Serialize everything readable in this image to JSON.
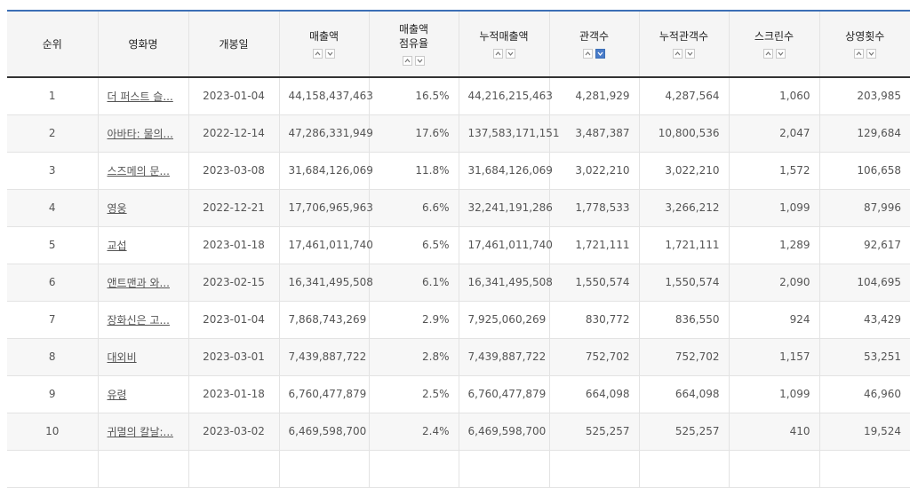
{
  "table": {
    "headers": [
      "순위",
      "영화명",
      "개봉일",
      "매출액",
      "매출액\n점유율",
      "누적매출액",
      "관객수",
      "누적관객수",
      "스크린수",
      "상영횟수"
    ],
    "sortable": [
      false,
      false,
      false,
      true,
      true,
      true,
      true,
      true,
      true,
      true
    ],
    "active_sort_column": 6,
    "active_sort_direction": "desc",
    "rows": [
      [
        "1",
        "더 퍼스트 슬...",
        "2023-01-04",
        "44,158,437,463",
        "16.5%",
        "44,216,215,463",
        "4,281,929",
        "4,287,564",
        "1,060",
        "203,985"
      ],
      [
        "2",
        "아바타: 물의...",
        "2022-12-14",
        "47,286,331,949",
        "17.6%",
        "137,583,171,151",
        "3,487,387",
        "10,800,536",
        "2,047",
        "129,684"
      ],
      [
        "3",
        "스즈메의 문...",
        "2023-03-08",
        "31,684,126,069",
        "11.8%",
        "31,684,126,069",
        "3,022,210",
        "3,022,210",
        "1,572",
        "106,658"
      ],
      [
        "4",
        "영웅",
        "2022-12-21",
        "17,706,965,963",
        "6.6%",
        "32,241,191,286",
        "1,778,533",
        "3,266,212",
        "1,099",
        "87,996"
      ],
      [
        "5",
        "교섭",
        "2023-01-18",
        "17,461,011,740",
        "6.5%",
        "17,461,011,740",
        "1,721,111",
        "1,721,111",
        "1,289",
        "92,617"
      ],
      [
        "6",
        "앤트맨과 와...",
        "2023-02-15",
        "16,341,495,508",
        "6.1%",
        "16,341,495,508",
        "1,550,574",
        "1,550,574",
        "2,090",
        "104,695"
      ],
      [
        "7",
        "장화신은 고...",
        "2023-01-04",
        "7,868,743,269",
        "2.9%",
        "7,925,060,269",
        "830,772",
        "836,550",
        "924",
        "43,429"
      ],
      [
        "8",
        "대외비",
        "2023-03-01",
        "7,439,887,722",
        "2.8%",
        "7,439,887,722",
        "752,702",
        "752,702",
        "1,157",
        "53,251"
      ],
      [
        "9",
        "유령",
        "2023-01-18",
        "6,760,477,879",
        "2.5%",
        "6,760,477,879",
        "664,098",
        "664,098",
        "1,099",
        "46,960"
      ],
      [
        "10",
        "귀멸의 칼날:...",
        "2023-03-02",
        "6,469,598,700",
        "2.4%",
        "6,469,598,700",
        "525,257",
        "525,257",
        "410",
        "19,524"
      ],
      [
        "",
        "",
        "",
        "",
        "",
        "",
        "",
        "",
        "",
        ""
      ]
    ]
  },
  "colors": {
    "header_border": "#3b6fb6",
    "active_sort": "#4a7cc9",
    "header_bg": "#f5f5f5"
  },
  "icons": {
    "sort_up": "chevron-up-icon",
    "sort_down": "chevron-down-icon"
  }
}
